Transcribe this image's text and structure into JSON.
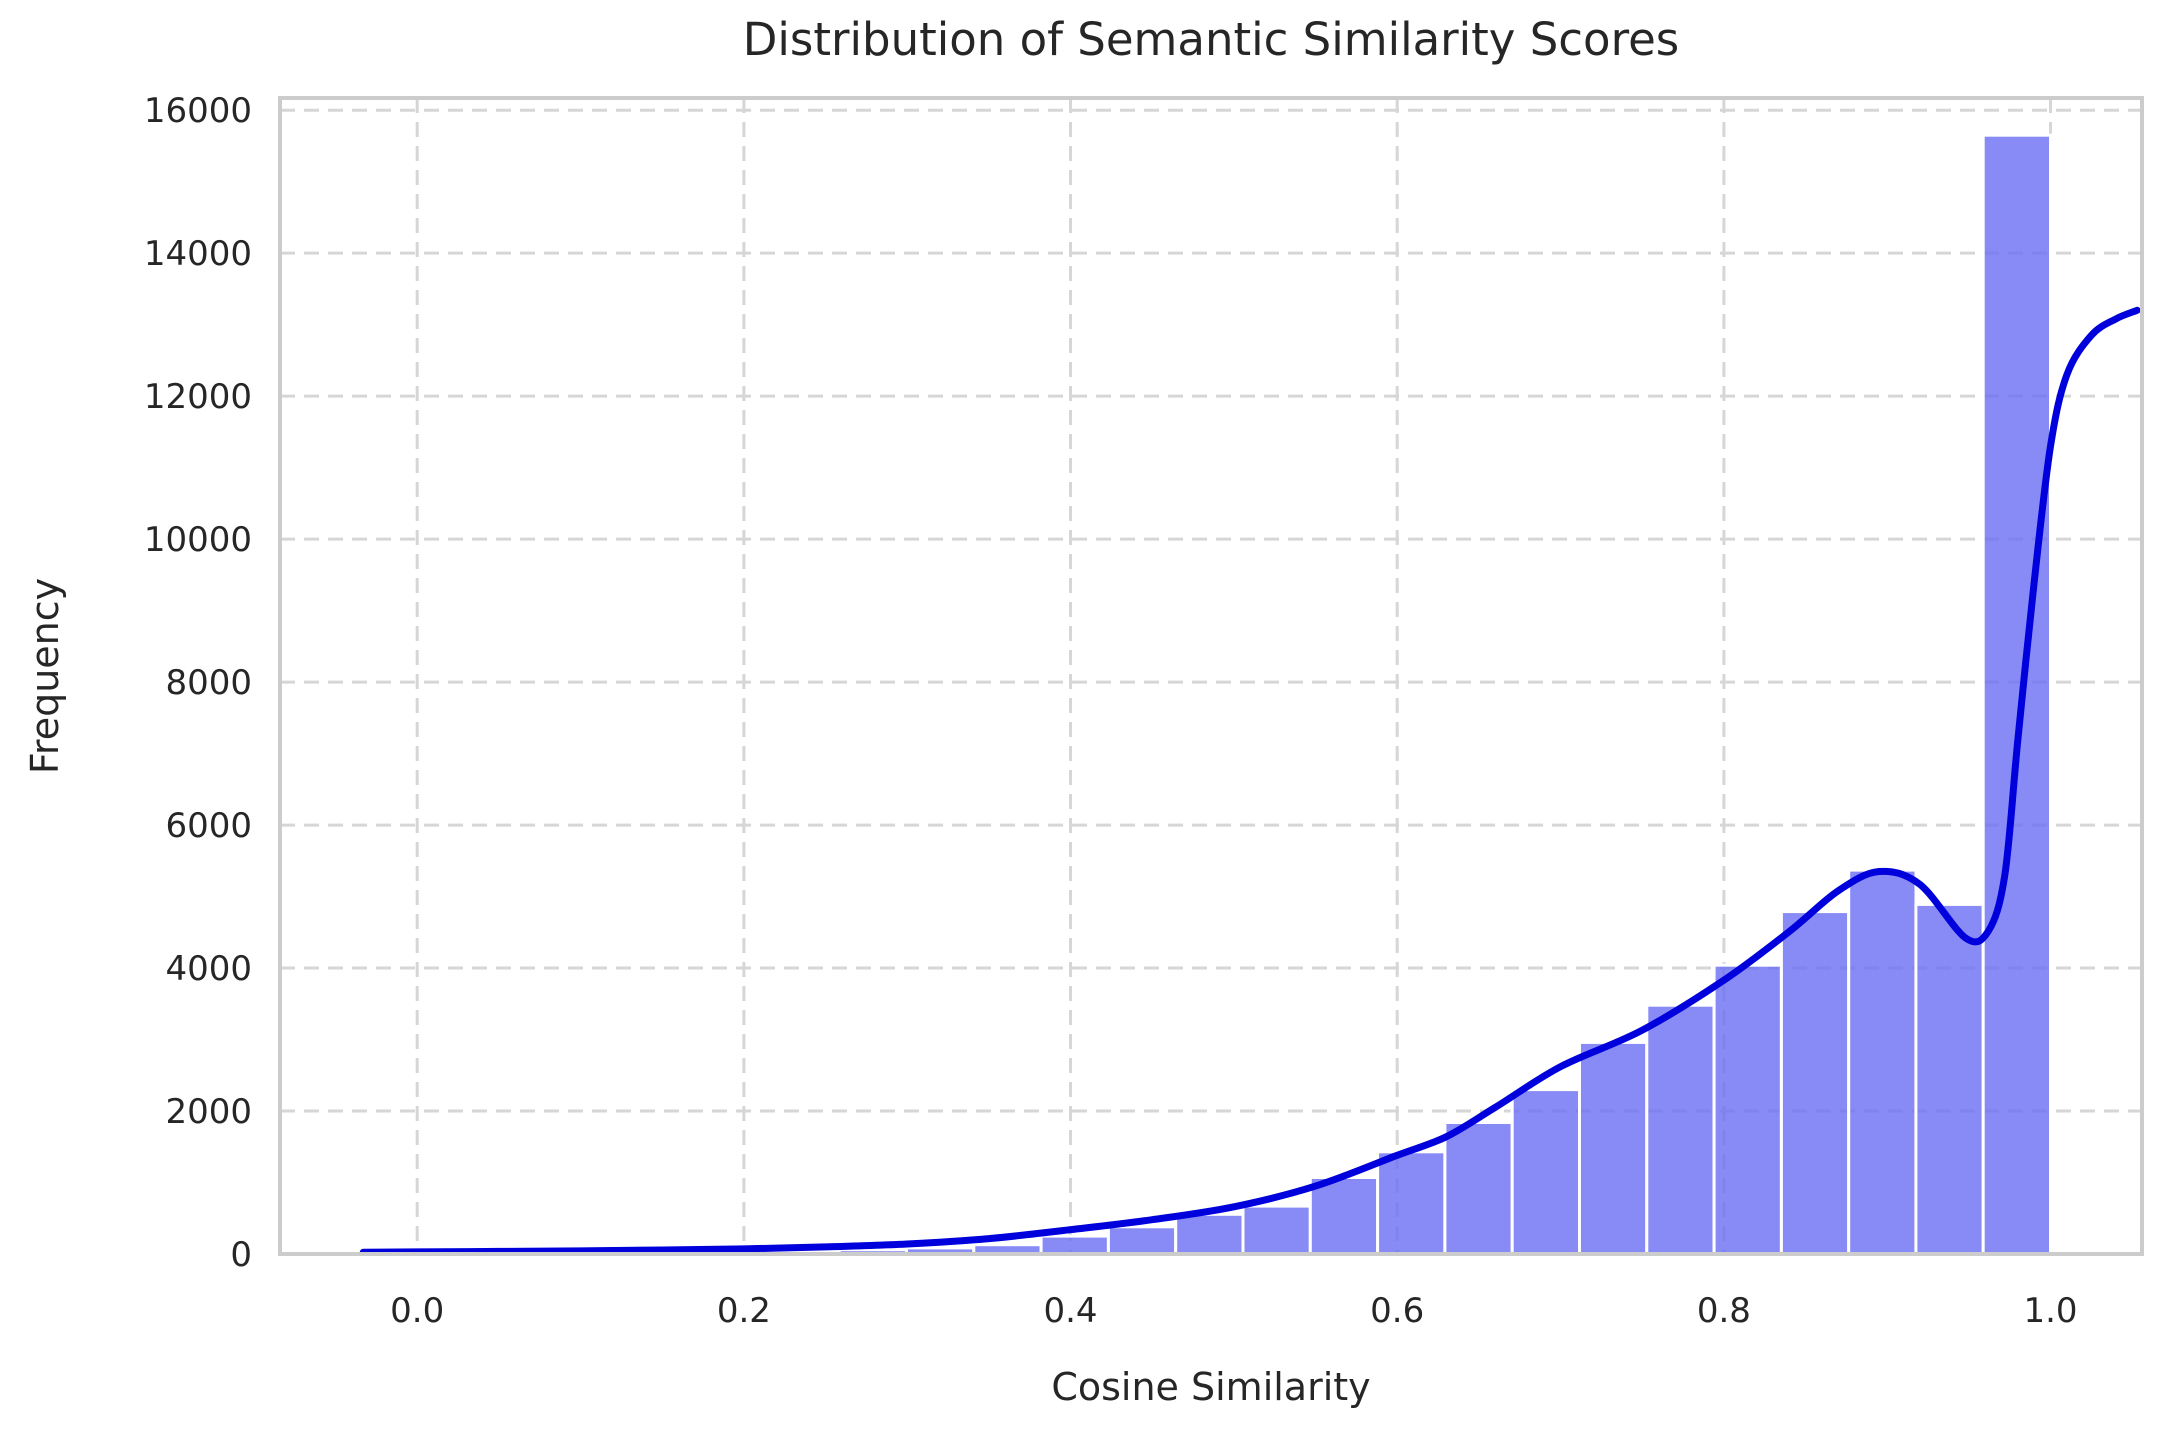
{
  "figure": {
    "title": "Distribution of Semantic Similarity Scores",
    "xlabel": "Cosine Similarity",
    "ylabel": "Frequency"
  },
  "chart_data": {
    "type": "bar",
    "subtype": "histogram_with_kde",
    "title": "Distribution of Semantic Similarity Scores",
    "xlabel": "Cosine Similarity",
    "ylabel": "Frequency",
    "grid": true,
    "legend": "none",
    "xlim": [
      -0.084,
      1.056
    ],
    "ylim": [
      0,
      16170
    ],
    "x_ticks": [
      0.0,
      0.2,
      0.4,
      0.6,
      0.8,
      1.0
    ],
    "x_tick_labels": [
      "0.0",
      "0.2",
      "0.4",
      "0.6",
      "0.8",
      "1.0"
    ],
    "y_ticks": [
      0,
      2000,
      4000,
      6000,
      8000,
      10000,
      12000,
      14000,
      16000
    ],
    "y_tick_labels": [
      "0",
      "2000",
      "4000",
      "6000",
      "8000",
      "10000",
      "12000",
      "14000",
      "16000"
    ],
    "bins": {
      "edges": [
        -0.03,
        0.0112,
        0.0524,
        0.0936,
        0.1348,
        0.176,
        0.2172,
        0.2584,
        0.2996,
        0.3408,
        0.382,
        0.4232,
        0.4644,
        0.5056,
        0.5468,
        0.588,
        0.6292,
        0.6704,
        0.7116,
        0.7528,
        0.794,
        0.8352,
        0.8764,
        0.9176,
        0.9588,
        1.0
      ],
      "counts": [
        40,
        25,
        20,
        22,
        28,
        35,
        45,
        60,
        85,
        130,
        250,
        380,
        555,
        670,
        1070,
        1430,
        1840,
        2300,
        2960,
        3480,
        4040,
        4790,
        5370,
        4890,
        15650
      ]
    },
    "kde_line": {
      "points": [
        [
          -0.033,
          25
        ],
        [
          0.0,
          30
        ],
        [
          0.05,
          36
        ],
        [
          0.1,
          44
        ],
        [
          0.15,
          56
        ],
        [
          0.2,
          72
        ],
        [
          0.25,
          100
        ],
        [
          0.3,
          140
        ],
        [
          0.35,
          215
        ],
        [
          0.4,
          340
        ],
        [
          0.45,
          480
        ],
        [
          0.5,
          660
        ],
        [
          0.55,
          950
        ],
        [
          0.6,
          1380
        ],
        [
          0.63,
          1640
        ],
        [
          0.66,
          2050
        ],
        [
          0.7,
          2620
        ],
        [
          0.75,
          3130
        ],
        [
          0.8,
          3830
        ],
        [
          0.84,
          4510
        ],
        [
          0.87,
          5080
        ],
        [
          0.895,
          5350
        ],
        [
          0.92,
          5170
        ],
        [
          0.948,
          4420
        ],
        [
          0.962,
          4520
        ],
        [
          0.972,
          5300
        ],
        [
          0.98,
          7200
        ],
        [
          0.99,
          9400
        ],
        [
          1.0,
          11300
        ],
        [
          1.01,
          12300
        ],
        [
          1.025,
          12850
        ],
        [
          1.04,
          13080
        ],
        [
          1.053,
          13200
        ]
      ]
    },
    "colors": {
      "bar_fill": "#6a6ef2",
      "bar_edge": "#ffffff",
      "kde_line": "#0000dd",
      "grid": "#d6d6d6",
      "spine": "#cccccc",
      "text": "#262626",
      "background": "#ffffff"
    }
  }
}
